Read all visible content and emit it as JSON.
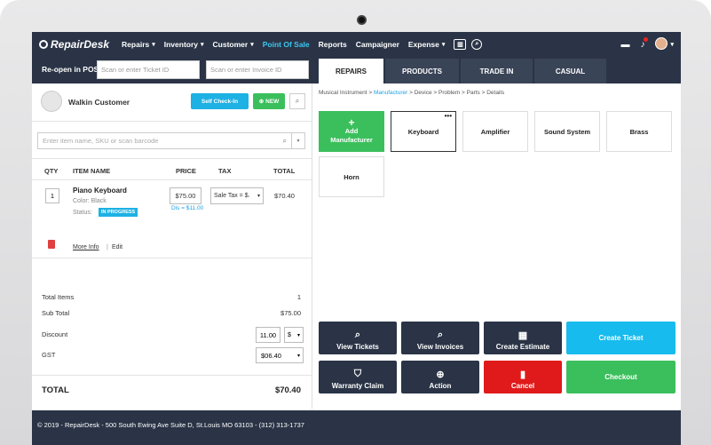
{
  "nav": {
    "brand": "RepairDesk",
    "items": [
      {
        "label": "Repairs",
        "caret": true,
        "active": false
      },
      {
        "label": "Inventory",
        "caret": true,
        "active": false
      },
      {
        "label": "Customer",
        "caret": true,
        "active": false
      },
      {
        "label": "Point Of Sale",
        "caret": false,
        "active": true
      },
      {
        "label": "Reports",
        "caret": false,
        "active": false
      },
      {
        "label": "Campaigner",
        "caret": false,
        "active": false
      },
      {
        "label": "Expense",
        "caret": true,
        "active": false
      }
    ]
  },
  "subbar": {
    "reopen_label": "Re-open in POS",
    "ticket_placeholder": "Scan or enter Ticket ID",
    "invoice_placeholder": "Scan or enter Invoice ID",
    "tabs": [
      "REPAIRS",
      "PRODUCTS",
      "TRADE IN",
      "CASUAL"
    ]
  },
  "customer": {
    "name": "Walkin Customer",
    "checkin_label": "Self Check-In",
    "new_label": "NEW"
  },
  "item_search": {
    "placeholder": "Enter item name, SKU or scan barcode"
  },
  "cart": {
    "headers": {
      "qty": "QTY",
      "item": "ITEM NAME",
      "price": "PRICE",
      "tax": "TAX",
      "total": "TOTAL"
    },
    "item": {
      "qty": "1",
      "name": "Piano Keyboard",
      "color": "Color: Black",
      "status_label": "Status:",
      "status": "IN PROGRESS",
      "price": "$75.00",
      "discount": "Dis = $11.00",
      "tax": "Sale Tax = $.",
      "total": "$70.40",
      "more_info": "More Info",
      "edit": "Edit"
    }
  },
  "summary": {
    "total_items_label": "Total Items",
    "total_items": "1",
    "subtotal_label": "Sub Total",
    "subtotal": "$75.00",
    "discount_label": "Discount",
    "discount_value": "11.00",
    "discount_type": "$",
    "gst_label": "GST",
    "gst_value": "$06.40",
    "total_label": "TOTAL",
    "total": "$70.40"
  },
  "breadcrumb": {
    "items": [
      "Musical Instrument",
      "Manufacturer",
      "Device",
      "Problem",
      "Parts",
      "Details"
    ],
    "separator": ">"
  },
  "manufacturers": {
    "add_label_line1": "Add",
    "add_label_line2": "Manufacturer",
    "items": [
      "Keyboard",
      "Amplifier",
      "Sound System",
      "Brass",
      "Horn"
    ],
    "selected": "Keyboard"
  },
  "actions": {
    "view_tickets": "View Tickets",
    "view_invoices": "View Invoices",
    "create_estimate": "Create Estimate",
    "create_ticket": "Create Ticket",
    "warranty_claim": "Warranty Claim",
    "action": "Action",
    "cancel": "Cancel",
    "checkout": "Checkout"
  },
  "footer": {
    "text": "© 2019 - RepairDesk - 500 South Ewing Ave Suite D, St.Louis MO 63103   -   (312) 313-1737"
  },
  "colors": {
    "navy": "#2a3446",
    "cyan": "#17bbee",
    "green": "#3bbf5c",
    "red": "#e01a1a"
  }
}
